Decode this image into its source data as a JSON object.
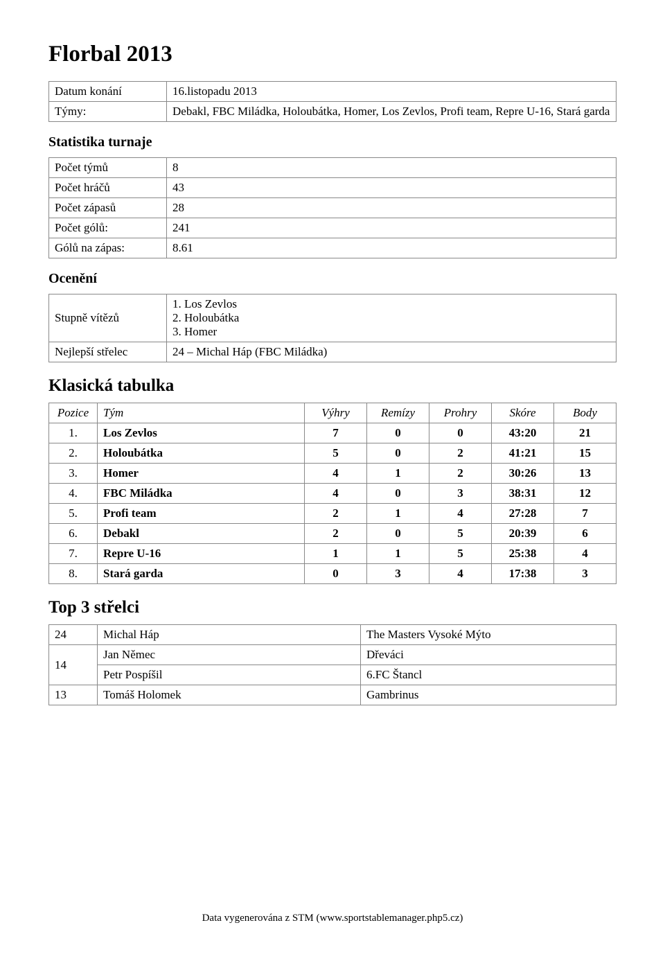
{
  "title": "Florbal 2013",
  "event": {
    "rows": [
      {
        "label": "Datum konání",
        "value": "16.listopadu 2013"
      },
      {
        "label": "Týmy:",
        "value": "Debakl, FBC Miládka, Holoubátka, Homer, Los Zevlos, Profi team, Repre U-16, Stará garda"
      }
    ]
  },
  "sections": {
    "stats_title": "Statistika turnaje",
    "awards_title": "Ocenění",
    "standings_title": "Klasická tabulka",
    "scorers_title": "Top 3 střelci"
  },
  "stats": {
    "rows": [
      {
        "label": "Počet týmů",
        "value": "8"
      },
      {
        "label": "Počet hráčů",
        "value": "43"
      },
      {
        "label": "Počet zápasů",
        "value": "28"
      },
      {
        "label": "Počet gólů:",
        "value": "241"
      },
      {
        "label": "Gólů na zápas:",
        "value": "8.61"
      }
    ]
  },
  "awards": {
    "rows": [
      {
        "label": "Stupně vítězů",
        "value": "1. Los Zevlos\n2. Holoubátka\n3. Homer"
      },
      {
        "label": "Nejlepší střelec",
        "value": "24 – Michal Háp (FBC Miládka)"
      }
    ]
  },
  "standings": {
    "columns": [
      "Pozice",
      "Tým",
      "Výhry",
      "Remízy",
      "Prohry",
      "Skóre",
      "Body"
    ],
    "rows": [
      {
        "pos": "1.",
        "team": "Los Zevlos",
        "w": "7",
        "d": "0",
        "l": "0",
        "score": "43:20",
        "pts": "21"
      },
      {
        "pos": "2.",
        "team": "Holoubátka",
        "w": "5",
        "d": "0",
        "l": "2",
        "score": "41:21",
        "pts": "15"
      },
      {
        "pos": "3.",
        "team": "Homer",
        "w": "4",
        "d": "1",
        "l": "2",
        "score": "30:26",
        "pts": "13"
      },
      {
        "pos": "4.",
        "team": "FBC Miládka",
        "w": "4",
        "d": "0",
        "l": "3",
        "score": "38:31",
        "pts": "12"
      },
      {
        "pos": "5.",
        "team": "Profi team",
        "w": "2",
        "d": "1",
        "l": "4",
        "score": "27:28",
        "pts": "7"
      },
      {
        "pos": "6.",
        "team": "Debakl",
        "w": "2",
        "d": "0",
        "l": "5",
        "score": "20:39",
        "pts": "6"
      },
      {
        "pos": "7.",
        "team": "Repre U-16",
        "w": "1",
        "d": "1",
        "l": "5",
        "score": "25:38",
        "pts": "4"
      },
      {
        "pos": "8.",
        "team": "Stará garda",
        "w": "0",
        "d": "3",
        "l": "4",
        "score": "17:38",
        "pts": "3"
      }
    ]
  },
  "scorers": {
    "rows": [
      {
        "rank": "24",
        "name": "Michal Háp",
        "team": "The Masters Vysoké Mýto",
        "rowspan": 1
      },
      {
        "rank": "14",
        "name": "Jan Němec",
        "team": "Dřeváci",
        "rowspan": 2
      },
      {
        "rank": "",
        "name": "Petr Pospíšil",
        "team": "6.FC Štancl",
        "rowspan": 0
      },
      {
        "rank": "13",
        "name": "Tomáš Holomek",
        "team": "Gambrinus",
        "rowspan": 1
      }
    ]
  },
  "footer": "Data vygenerována z STM (www.sportstablemanager.php5.cz)"
}
